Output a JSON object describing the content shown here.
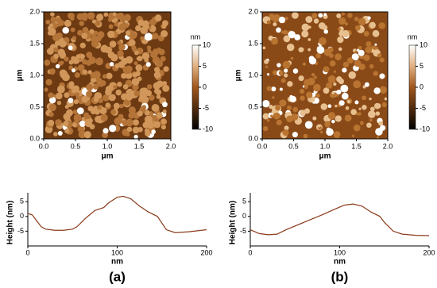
{
  "chart_data": [
    {
      "type": "image",
      "xlabel": "μm",
      "ylabel": "μm",
      "xlim": [
        0,
        2
      ],
      "ylim": [
        0,
        2
      ],
      "xticks": [
        {
          "value": 0,
          "label": "0.0"
        },
        {
          "value": 0.5,
          "label": "0.5"
        },
        {
          "value": 1,
          "label": "1.0"
        },
        {
          "value": 1.5,
          "label": "1.5"
        },
        {
          "value": 2,
          "label": "2.0"
        }
      ],
      "yticks": [
        {
          "value": 0,
          "label": "0.0"
        },
        {
          "value": 0.5,
          "label": "0.5"
        },
        {
          "value": 1,
          "label": "1.0"
        },
        {
          "value": 1.5,
          "label": "1.5"
        },
        {
          "value": 2,
          "label": "2.0"
        }
      ],
      "colorbar_label": "nm",
      "colorbar_lim": [
        -10,
        10
      ],
      "colorbar_ticks": [
        -10,
        -5,
        0,
        5,
        10
      ]
    },
    {
      "type": "image",
      "xlabel": "μm",
      "ylabel": "μm",
      "xlim": [
        0,
        2
      ],
      "ylim": [
        0,
        2
      ],
      "xticks": [
        {
          "value": 0,
          "label": "0.0"
        },
        {
          "value": 0.5,
          "label": "0.5"
        },
        {
          "value": 1,
          "label": "1.0"
        },
        {
          "value": 1.5,
          "label": "1.5"
        },
        {
          "value": 2,
          "label": "2.0"
        }
      ],
      "yticks": [
        {
          "value": 0,
          "label": "0.0"
        },
        {
          "value": 0.5,
          "label": "0.5"
        },
        {
          "value": 1,
          "label": "1.0"
        },
        {
          "value": 1.5,
          "label": "1.5"
        },
        {
          "value": 2,
          "label": "2.0"
        }
      ],
      "colorbar_label": "nm",
      "colorbar_lim": [
        -10,
        10
      ],
      "colorbar_ticks": [
        -10,
        -5,
        0,
        5,
        10
      ]
    },
    {
      "type": "line",
      "panel_label": "(a)",
      "xlabel": "nm",
      "ylabel": "Height (nm)",
      "color": "#8b3a1a",
      "x": [
        0,
        5,
        10,
        15,
        20,
        30,
        40,
        50,
        55,
        65,
        75,
        85,
        90,
        100,
        107,
        115,
        125,
        135,
        145,
        155,
        165,
        180,
        200
      ],
      "values": [
        1,
        0.5,
        -1.5,
        -3.5,
        -4.3,
        -4.7,
        -4.7,
        -4.3,
        -3.5,
        -0.5,
        2,
        3,
        4.5,
        6.5,
        6.8,
        6,
        3.5,
        1.5,
        0,
        -4.5,
        -5.5,
        -5.2,
        -4.5
      ],
      "xlim": [
        0,
        200
      ],
      "ylim": [
        -10,
        8
      ],
      "xticks": [
        0,
        100,
        200
      ],
      "yticks": [
        -5,
        0,
        5
      ]
    },
    {
      "type": "line",
      "panel_label": "(b)",
      "xlabel": "nm",
      "ylabel": "Height (nm)",
      "color": "#8b3a1a",
      "x": [
        0,
        10,
        20,
        30,
        40,
        60,
        80,
        95,
        105,
        115,
        125,
        135,
        145,
        150,
        160,
        170,
        185,
        200
      ],
      "values": [
        -4.5,
        -5.8,
        -6.2,
        -6,
        -4.5,
        -2,
        0.5,
        2.5,
        3.8,
        4.2,
        3.5,
        1.5,
        0,
        -2,
        -5,
        -6,
        -6.4,
        -6.5
      ],
      "xlim": [
        0,
        200
      ],
      "ylim": [
        -10,
        8
      ],
      "xticks": [
        0,
        100,
        200
      ],
      "yticks": [
        -5,
        0,
        5
      ]
    }
  ]
}
